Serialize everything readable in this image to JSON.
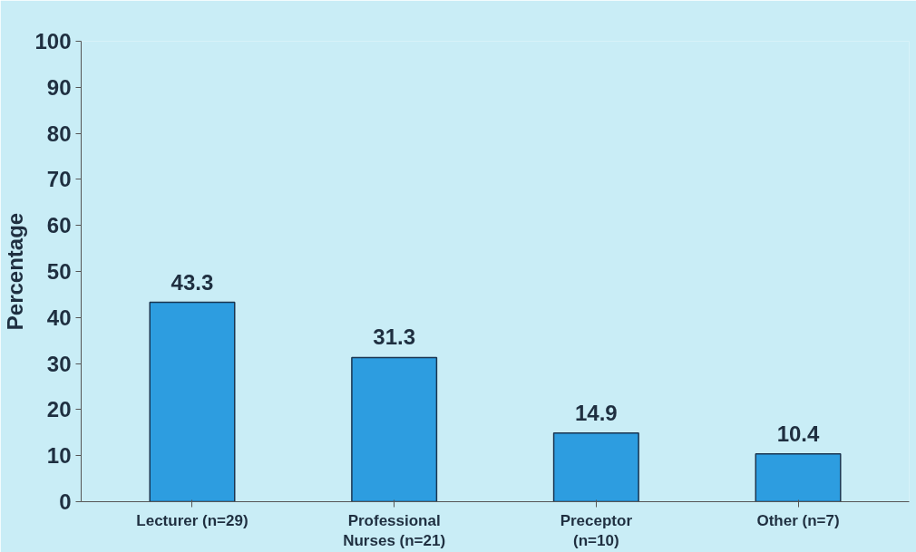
{
  "chart_data": {
    "type": "bar",
    "ylabel": "Percentage",
    "categories": [
      "Lecturer (n=29)",
      "Professional\nNurses (n=21)",
      "Preceptor\n(n=10)",
      "Other (n=7)"
    ],
    "values": [
      43.3,
      31.3,
      14.9,
      10.4
    ],
    "color": "#2d9de0",
    "ylim": [
      0,
      100
    ],
    "yticks": [
      0,
      10,
      20,
      30,
      40,
      50,
      60,
      70,
      80,
      90,
      100
    ],
    "grid": false,
    "data_labels": true
  }
}
